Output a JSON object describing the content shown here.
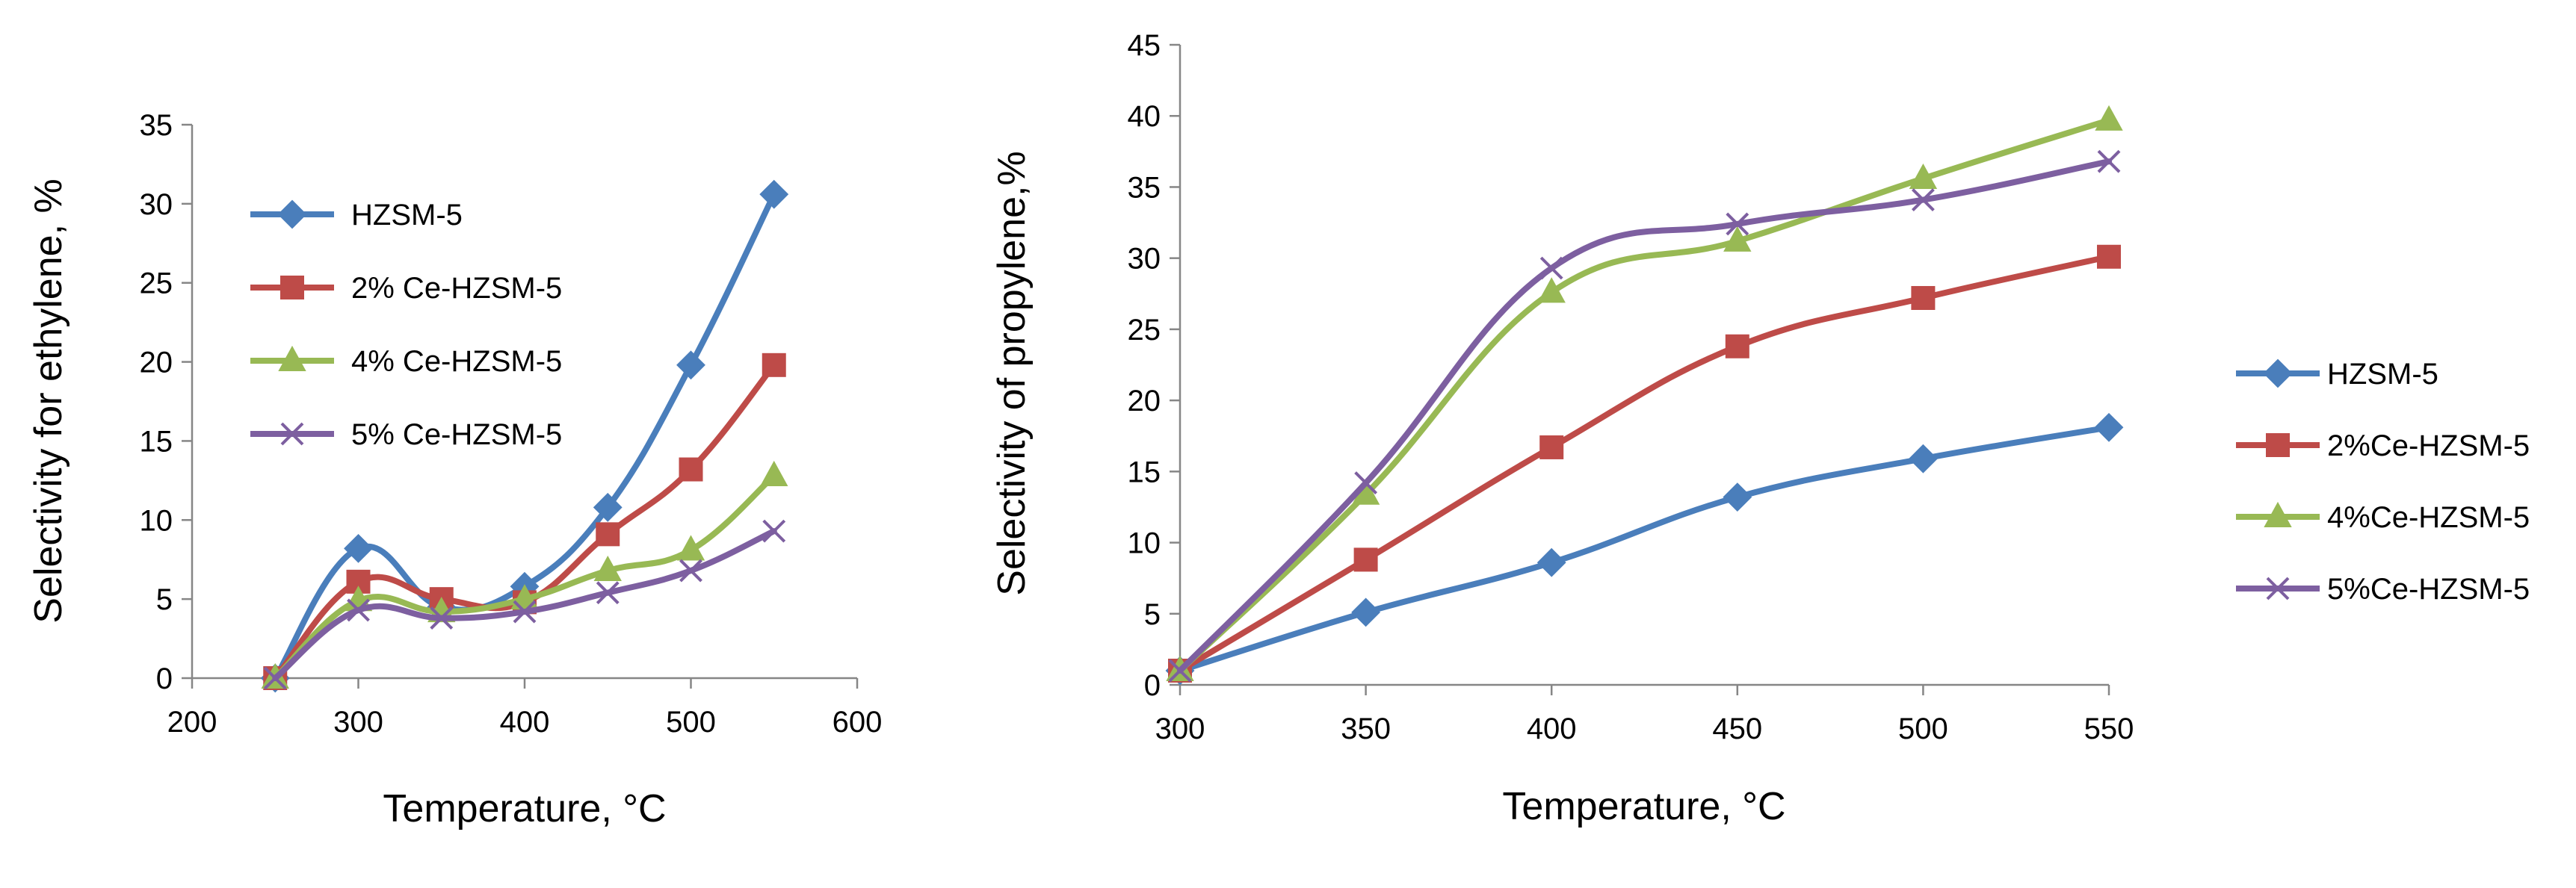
{
  "chart_data": [
    {
      "type": "line",
      "title": "",
      "xlabel": "Temperature, °C",
      "ylabel": "Selectivity for ethylene, %",
      "xlim": [
        200,
        600
      ],
      "ylim": [
        0,
        35
      ],
      "xticks": [
        "200",
        "300",
        "400",
        "500",
        "600"
      ],
      "yticks": [
        "0",
        "5",
        "10",
        "15",
        "20",
        "25",
        "30",
        "35"
      ],
      "x": [
        250,
        300,
        350,
        400,
        450,
        500,
        550
      ],
      "grid": false,
      "legend_position": "top-left",
      "smooth": true,
      "series": [
        {
          "name": "HZSM-5",
          "values": [
            0,
            8.2,
            4.5,
            5.8,
            10.8,
            19.8,
            30.6
          ],
          "color": "#4a7ebb",
          "marker": "diamond"
        },
        {
          "name": "2% Ce-HZSM-5",
          "values": [
            0,
            6.1,
            5.0,
            4.8,
            9.1,
            13.2,
            19.8
          ],
          "color": "#be4b48",
          "marker": "square"
        },
        {
          "name": "4% Ce-HZSM-5",
          "values": [
            0,
            4.9,
            4.2,
            5.0,
            6.8,
            8.1,
            12.8
          ],
          "color": "#98b954",
          "marker": "triangle"
        },
        {
          "name": "5% Ce-HZSM-5",
          "values": [
            0,
            4.3,
            3.8,
            4.2,
            5.4,
            6.8,
            9.3
          ],
          "color": "#7d5fa0",
          "marker": "x"
        }
      ]
    },
    {
      "type": "line",
      "title": "",
      "xlabel": "Temperature, °C",
      "ylabel": "Selectivity of propylene,%",
      "xlim": [
        300,
        550
      ],
      "ylim": [
        0,
        45
      ],
      "xticks": [
        "300",
        "350",
        "400",
        "450",
        "500",
        "550"
      ],
      "yticks": [
        "0",
        "5",
        "10",
        "15",
        "20",
        "25",
        "30",
        "35",
        "40",
        "45"
      ],
      "x": [
        300,
        350,
        400,
        450,
        500,
        550
      ],
      "grid": false,
      "legend_position": "right",
      "smooth": true,
      "series": [
        {
          "name": "HZSM-5",
          "values": [
            1.0,
            5.1,
            8.6,
            13.2,
            15.9,
            18.1
          ],
          "color": "#4a7ebb",
          "marker": "diamond"
        },
        {
          "name": "2%Ce-HZSM-5",
          "values": [
            1.0,
            8.8,
            16.7,
            23.8,
            27.2,
            30.1
          ],
          "color": "#be4b48",
          "marker": "square"
        },
        {
          "name": "4%Ce-HZSM-5",
          "values": [
            1.0,
            13.4,
            27.6,
            31.2,
            35.6,
            39.7
          ],
          "color": "#98b954",
          "marker": "triangle"
        },
        {
          "name": "5%Ce-HZSM-5",
          "values": [
            1.0,
            14.2,
            29.3,
            32.4,
            34.1,
            36.8
          ],
          "color": "#7d5fa0",
          "marker": "x"
        }
      ]
    }
  ]
}
